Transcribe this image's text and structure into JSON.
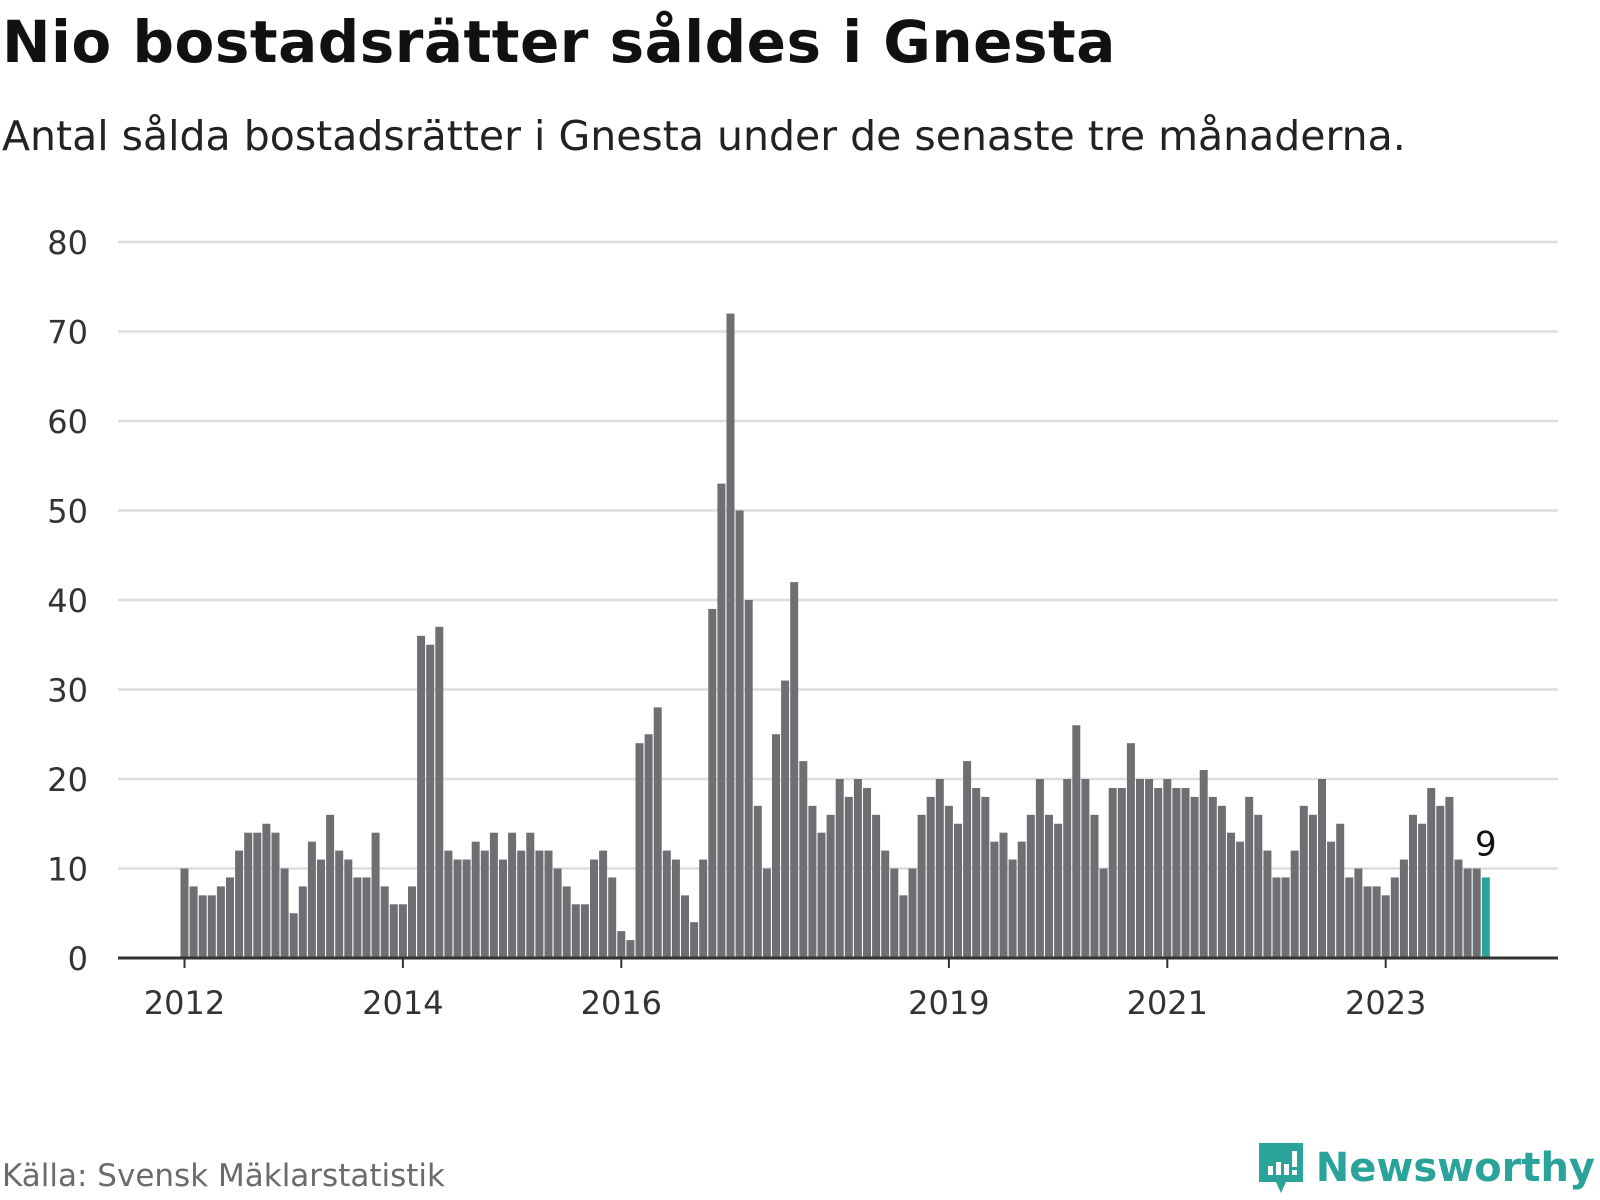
{
  "header": {
    "title": "Nio bostadsrätter såldes i Gnesta",
    "subtitle": "Antal sålda bostadsrätter i Gnesta under de senaste tre månaderna."
  },
  "footer": {
    "source": "Källa: Svensk Mäklarstatistik",
    "brand": "Newsworthy",
    "brand_icon": "newsworthy-logo-icon"
  },
  "colors": {
    "bar": "#6e6e73",
    "highlight": "#2aa39a",
    "grid": "#dedede",
    "axis": "#333333"
  },
  "chart_data": {
    "type": "bar",
    "title": "Nio bostadsrätter såldes i Gnesta",
    "xlabel": "",
    "ylabel": "",
    "ylim": [
      0,
      80
    ],
    "yticks": [
      0,
      10,
      20,
      30,
      40,
      50,
      60,
      70,
      80
    ],
    "grid": true,
    "x_ticks": [
      {
        "label": "2012",
        "index": 0
      },
      {
        "label": "2014",
        "index": 24
      },
      {
        "label": "2016",
        "index": 48
      },
      {
        "label": "2019",
        "index": 84
      },
      {
        "label": "2021",
        "index": 108
      },
      {
        "label": "2023",
        "index": 132
      }
    ],
    "highlight_index": 143,
    "highlight_label": "9",
    "values": [
      10,
      8,
      7,
      7,
      8,
      9,
      12,
      14,
      14,
      15,
      14,
      10,
      5,
      8,
      13,
      11,
      16,
      12,
      11,
      9,
      9,
      14,
      8,
      6,
      6,
      8,
      36,
      35,
      37,
      12,
      11,
      11,
      13,
      12,
      14,
      11,
      14,
      12,
      14,
      12,
      12,
      10,
      8,
      6,
      6,
      11,
      12,
      9,
      3,
      2,
      24,
      25,
      28,
      12,
      11,
      7,
      4,
      11,
      39,
      53,
      72,
      50,
      40,
      17,
      10,
      25,
      31,
      42,
      22,
      17,
      14,
      16,
      20,
      18,
      20,
      19,
      16,
      12,
      10,
      7,
      10,
      16,
      18,
      20,
      17,
      15,
      22,
      19,
      18,
      13,
      14,
      11,
      13,
      16,
      20,
      16,
      15,
      20,
      26,
      20,
      16,
      10,
      19,
      19,
      24,
      20,
      20,
      19,
      20,
      19,
      19,
      18,
      21,
      18,
      17,
      14,
      13,
      18,
      16,
      12,
      9,
      9,
      12,
      17,
      16,
      20,
      13,
      15,
      9,
      10,
      8,
      8,
      7,
      9,
      11,
      16,
      15,
      19,
      17,
      18,
      11,
      10,
      10,
      9
    ]
  }
}
